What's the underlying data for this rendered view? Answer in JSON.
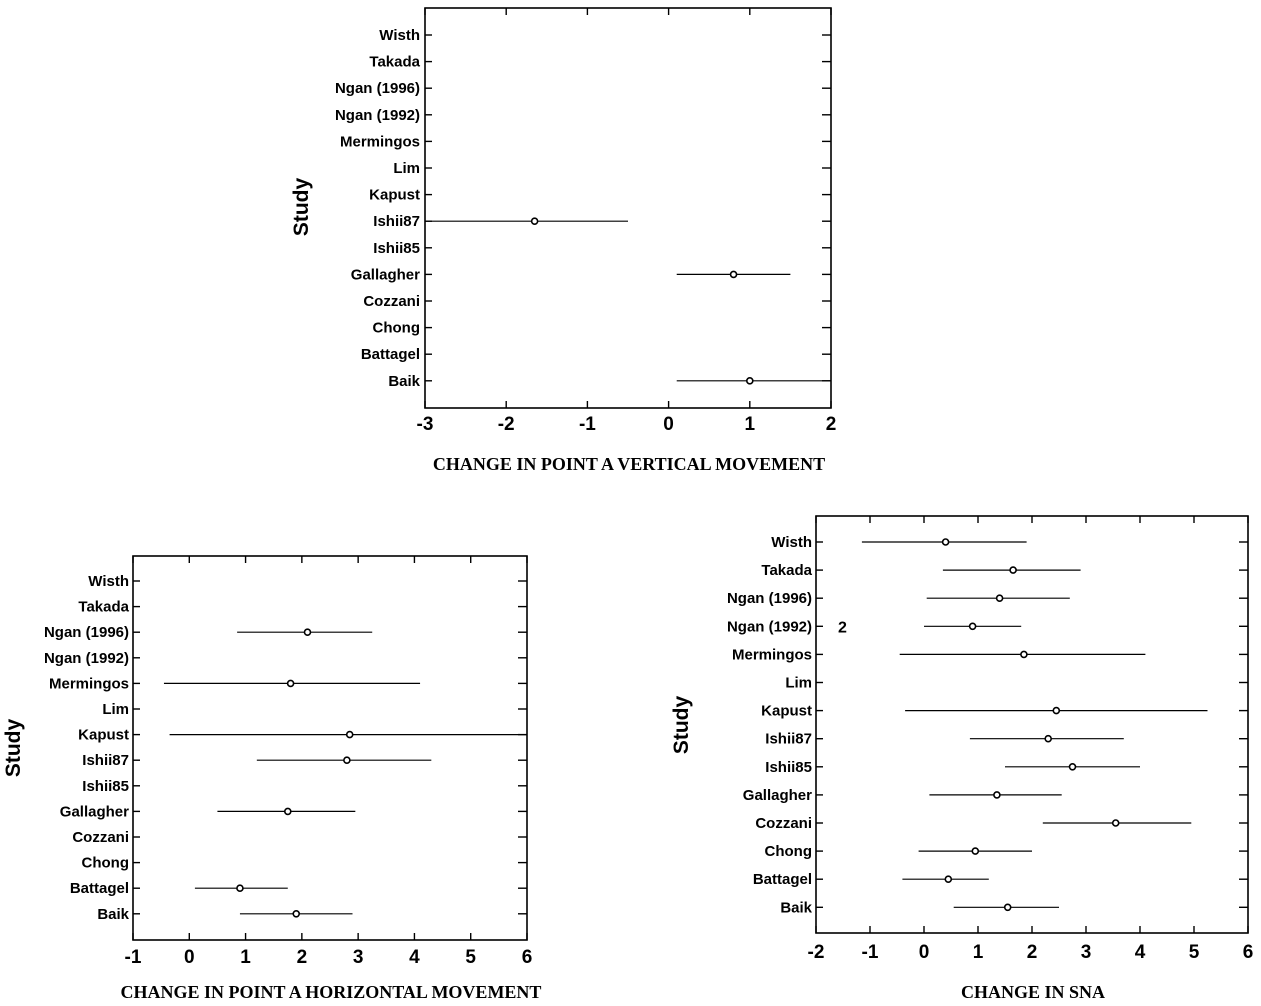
{
  "chart_data": [
    {
      "type": "forest",
      "xlabel": "CHANGE IN POINT A VERTICAL MOVEMENT",
      "ylabel": "Study",
      "xlim": [
        -3,
        2
      ],
      "xticks": [
        -3,
        -2,
        -1,
        0,
        1,
        2
      ],
      "studies": [
        "Wisth",
        "Takada",
        "Ngan (1996)",
        "Ngan (1992)",
        "Mermingos",
        "Lim",
        "Kapust",
        "Ishii87",
        "Ishii85",
        "Gallagher",
        "Cozzani",
        "Chong",
        "Battagel",
        "Baik"
      ],
      "estimates": [
        {
          "study": "Ishii87",
          "value": -1.65,
          "ci": [
            -3.0,
            -0.5
          ]
        },
        {
          "study": "Gallagher",
          "value": 0.8,
          "ci": [
            0.1,
            1.5
          ]
        },
        {
          "study": "Baik",
          "value": 1.0,
          "ci": [
            0.1,
            2.0
          ]
        }
      ],
      "annotations": []
    },
    {
      "type": "forest",
      "xlabel": "CHANGE IN POINT A HORIZONTAL MOVEMENT",
      "ylabel": "Study",
      "xlim": [
        -1,
        6
      ],
      "xticks": [
        -1,
        0,
        1,
        2,
        3,
        4,
        5,
        6
      ],
      "studies": [
        "Wisth",
        "Takada",
        "Ngan (1996)",
        "Ngan (1992)",
        "Mermingos",
        "Lim",
        "Kapust",
        "Ishii87",
        "Ishii85",
        "Gallagher",
        "Cozzani",
        "Chong",
        "Battagel",
        "Baik"
      ],
      "estimates": [
        {
          "study": "Ngan (1996)",
          "value": 2.1,
          "ci": [
            0.85,
            3.25
          ]
        },
        {
          "study": "Mermingos",
          "value": 1.8,
          "ci": [
            -0.45,
            4.1
          ]
        },
        {
          "study": "Kapust",
          "value": 2.85,
          "ci": [
            -0.35,
            6.0
          ]
        },
        {
          "study": "Ishii87",
          "value": 2.8,
          "ci": [
            1.2,
            4.3
          ]
        },
        {
          "study": "Gallagher",
          "value": 1.75,
          "ci": [
            0.5,
            2.95
          ]
        },
        {
          "study": "Battagel",
          "value": 0.9,
          "ci": [
            0.1,
            1.75
          ]
        },
        {
          "study": "Baik",
          "value": 1.9,
          "ci": [
            0.9,
            2.9
          ]
        }
      ],
      "annotations": []
    },
    {
      "type": "forest",
      "xlabel": "CHANGE IN SNA",
      "ylabel": "Study",
      "xlim": [
        -2,
        6
      ],
      "xticks": [
        -2,
        -1,
        0,
        1,
        2,
        3,
        4,
        5,
        6
      ],
      "studies": [
        "Wisth",
        "Takada",
        "Ngan (1996)",
        "Ngan (1992)",
        "Mermingos",
        "Lim",
        "Kapust",
        "Ishii87",
        "Ishii85",
        "Gallagher",
        "Cozzani",
        "Chong",
        "Battagel",
        "Baik"
      ],
      "estimates": [
        {
          "study": "Wisth",
          "value": 0.4,
          "ci": [
            -1.15,
            1.9
          ]
        },
        {
          "study": "Takada",
          "value": 1.65,
          "ci": [
            0.35,
            2.9
          ]
        },
        {
          "study": "Ngan (1996)",
          "value": 1.4,
          "ci": [
            0.05,
            2.7
          ]
        },
        {
          "study": "Ngan (1992)",
          "value": 0.9,
          "ci": [
            0.0,
            1.8
          ]
        },
        {
          "study": "Mermingos",
          "value": 1.85,
          "ci": [
            -0.45,
            4.1
          ]
        },
        {
          "study": "Kapust",
          "value": 2.45,
          "ci": [
            -0.35,
            5.25
          ]
        },
        {
          "study": "Ishii87",
          "value": 2.3,
          "ci": [
            0.85,
            3.7
          ]
        },
        {
          "study": "Ishii85",
          "value": 2.75,
          "ci": [
            1.5,
            4.0
          ]
        },
        {
          "study": "Gallagher",
          "value": 1.35,
          "ci": [
            0.1,
            2.55
          ]
        },
        {
          "study": "Cozzani",
          "value": 3.55,
          "ci": [
            2.2,
            4.95
          ]
        },
        {
          "study": "Chong",
          "value": 0.95,
          "ci": [
            -0.1,
            2.0
          ]
        },
        {
          "study": "Battagel",
          "value": 0.45,
          "ci": [
            -0.4,
            1.2
          ]
        },
        {
          "study": "Baik",
          "value": 1.55,
          "ci": [
            0.55,
            2.5
          ]
        }
      ],
      "annotations": [
        {
          "study": "Ngan (1992)",
          "text": "2"
        }
      ]
    }
  ]
}
